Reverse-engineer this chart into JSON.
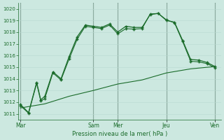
{
  "xlabel": "Pression niveau de la mer( hPa )",
  "bg_color": "#cce8e0",
  "grid_color_minor": "#b8d8d0",
  "grid_color_major": "#b0cccc",
  "vline_color": "#557766",
  "line_color": "#1a6b2a",
  "ylim": [
    1010.5,
    1020.5
  ],
  "yticks": [
    1011,
    1012,
    1013,
    1014,
    1015,
    1016,
    1017,
    1018,
    1019,
    1020
  ],
  "day_labels": [
    "Mar",
    "Sam",
    "Mer",
    "Jeu",
    "Ven"
  ],
  "day_positions": [
    0,
    18,
    24,
    36,
    48
  ],
  "xlim": [
    -0.5,
    49.5
  ],
  "line1_x": [
    0,
    2,
    4,
    5,
    6,
    8,
    10,
    12,
    14,
    16,
    18,
    20,
    22,
    24,
    26,
    28,
    30,
    32,
    34,
    36,
    38,
    40,
    42,
    44,
    46,
    48
  ],
  "line1_y": [
    1011.8,
    1011.1,
    1013.7,
    1012.2,
    1012.5,
    1014.6,
    1014.0,
    1015.9,
    1017.6,
    1018.6,
    1018.5,
    1018.4,
    1018.7,
    1018.0,
    1018.5,
    1018.4,
    1018.4,
    1019.5,
    1019.6,
    1019.0,
    1018.85,
    1017.3,
    1015.65,
    1015.6,
    1015.4,
    1015.05
  ],
  "line2_x": [
    0,
    2,
    4,
    5,
    6,
    8,
    10,
    12,
    14,
    16,
    18,
    20,
    22,
    24,
    26,
    28,
    30,
    32,
    34,
    36,
    38,
    40,
    42,
    44,
    46,
    48
  ],
  "line2_y": [
    1011.7,
    1011.05,
    1013.6,
    1012.1,
    1012.3,
    1014.5,
    1013.9,
    1015.7,
    1017.4,
    1018.5,
    1018.4,
    1018.3,
    1018.6,
    1017.85,
    1018.3,
    1018.25,
    1018.3,
    1019.55,
    1019.6,
    1019.05,
    1018.8,
    1017.2,
    1015.5,
    1015.45,
    1015.3,
    1014.95
  ],
  "line3_x": [
    0,
    6,
    12,
    18,
    24,
    30,
    36,
    42,
    48
  ],
  "line3_y": [
    1011.5,
    1011.85,
    1012.5,
    1013.0,
    1013.55,
    1013.9,
    1014.5,
    1014.85,
    1015.05
  ]
}
